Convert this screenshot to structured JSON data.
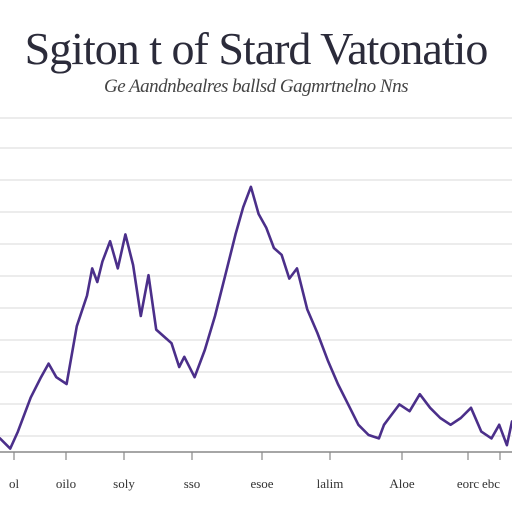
{
  "chart_data": {
    "type": "line",
    "title": "Sgiton t of Stard Vatonatio",
    "subtitle": "Ge   Aandnbealres ballsd  Gagmrtnelno  Nns",
    "xlabel": "",
    "ylabel": "",
    "tick_labels": [
      "ol",
      "oilo",
      "soly",
      "sso",
      "esoe",
      "lalim",
      "Aloe",
      "eorc",
      "ebc"
    ],
    "grid": true,
    "legend": "none",
    "line_color": "#4b2f8a",
    "xlim": [
      0,
      100
    ],
    "ylim": [
      0,
      100
    ],
    "series": [
      {
        "x": [
          0,
          2,
          3.5,
          6,
          8,
          9.5,
          11,
          13,
          15,
          17,
          18,
          19,
          20,
          21.5,
          23,
          24.5,
          26,
          27.5,
          29,
          30.5,
          32,
          33.5,
          35,
          36,
          38,
          40,
          42,
          44,
          46,
          47.5,
          49,
          50.5,
          52,
          53.5,
          55,
          56.5,
          58,
          60,
          62,
          64,
          66,
          68,
          70,
          72,
          74,
          75,
          76,
          78,
          80,
          82,
          84,
          86,
          88,
          90,
          92,
          94,
          96,
          97.5,
          99,
          100
        ],
        "y": [
          4,
          1,
          6,
          16,
          22,
          26,
          22,
          20,
          37,
          46,
          54,
          50,
          56,
          62,
          54,
          64,
          55,
          40,
          52,
          36,
          34,
          32,
          25,
          28,
          22,
          30,
          40,
          52,
          64,
          72,
          78,
          70,
          66,
          60,
          58,
          51,
          54,
          42,
          35,
          27,
          20,
          14,
          8,
          5,
          4,
          8,
          10,
          14,
          12,
          17,
          13,
          10,
          8,
          10,
          13,
          6,
          4,
          8,
          2,
          9
        ]
      }
    ]
  }
}
